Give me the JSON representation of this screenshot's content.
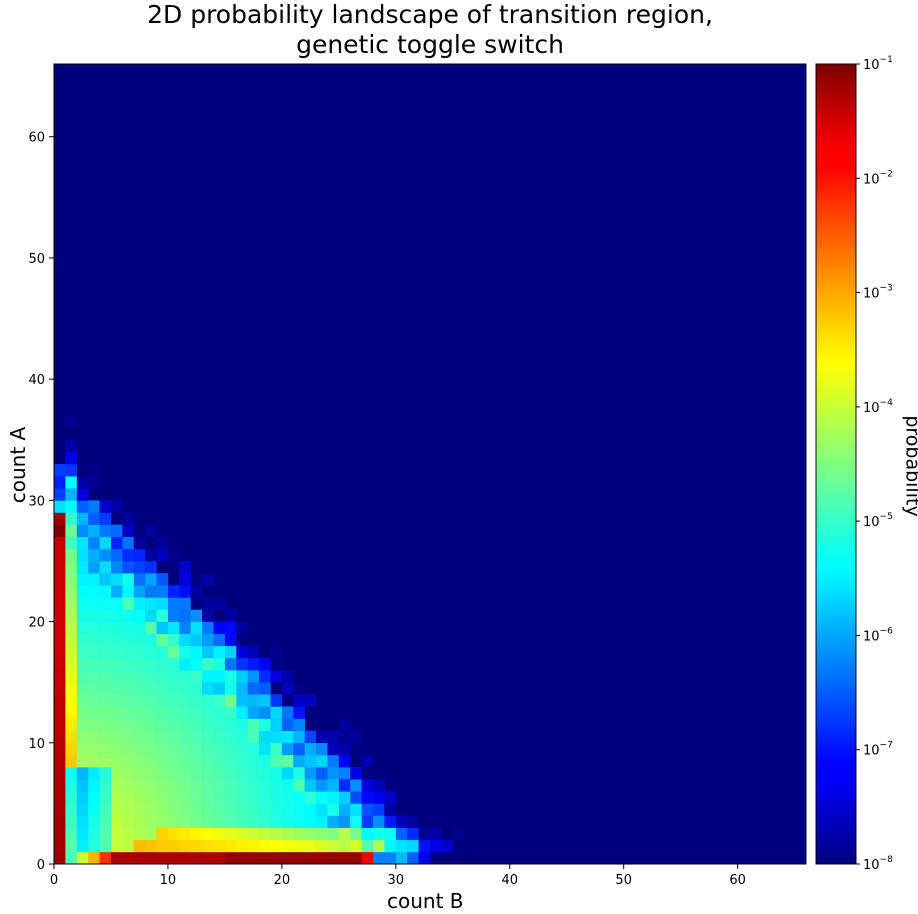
{
  "chart_data": {
    "type": "heatmap",
    "title_line1": "2D probability landscape of transition region,",
    "title_line2": "genetic toggle switch",
    "xlabel": "count B",
    "ylabel": "count A",
    "xlim": [
      0,
      66
    ],
    "ylim": [
      0,
      66
    ],
    "xticks": [
      "0",
      "10",
      "20",
      "30",
      "40",
      "50",
      "60"
    ],
    "yticks": [
      "0",
      "10",
      "20",
      "30",
      "40",
      "50",
      "60"
    ],
    "colorbar": {
      "label": "probability",
      "scale": "log",
      "range": [
        1e-08,
        0.1
      ],
      "ticks": [
        {
          "base": "10",
          "exp": "−8"
        },
        {
          "base": "10",
          "exp": "−7"
        },
        {
          "base": "10",
          "exp": "−6"
        },
        {
          "base": "10",
          "exp": "−5"
        },
        {
          "base": "10",
          "exp": "−4"
        },
        {
          "base": "10",
          "exp": "−3"
        },
        {
          "base": "10",
          "exp": "−2"
        },
        {
          "base": "10",
          "exp": "−1"
        }
      ],
      "colormap": "jet"
    },
    "background_value": 1e-08,
    "notes_on_field": "log10 probability field: high (~0.1) along A≈0–28 at B=0 and B≈0–27 at A=0, decreasing into a triangular region bounded by B+A≈38–40; values beyond are at floor 1e-8"
  },
  "colors": {
    "jet_min": "#00007f",
    "jet_max": "#7f0000"
  }
}
